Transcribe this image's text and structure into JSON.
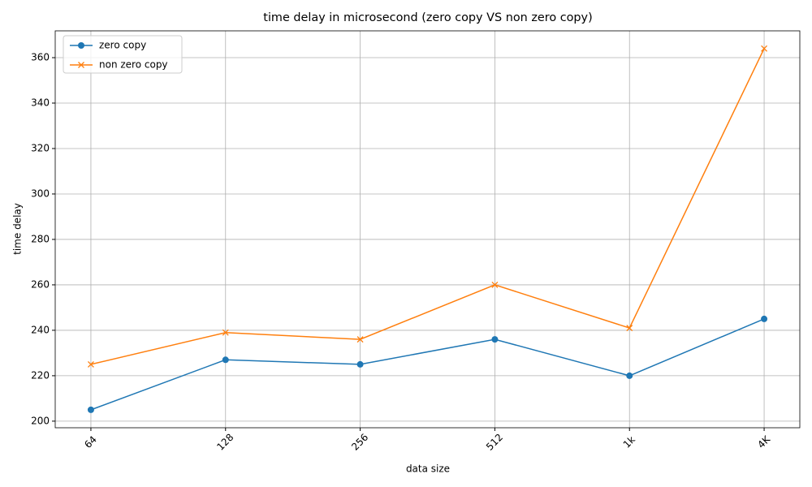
{
  "chart_data": {
    "type": "line",
    "title": "time delay in microsecond (zero copy VS non zero copy)",
    "x_label": "data size",
    "y_label": "time delay",
    "categories": [
      "64",
      "128",
      "256",
      "512",
      "1k",
      "4K"
    ],
    "series": [
      {
        "name": "zero copy",
        "color": "#1f77b4",
        "marker": "o",
        "values": [
          205,
          227,
          225,
          236,
          220,
          245
        ]
      },
      {
        "name": "non zero copy",
        "color": "#ff7f0e",
        "marker": "x",
        "values": [
          225,
          239,
          236,
          260,
          241,
          364
        ]
      }
    ],
    "ylim": [
      197.1,
      371.8
    ],
    "yticks": [
      200,
      220,
      240,
      260,
      280,
      300,
      320,
      340,
      360
    ],
    "grid": true,
    "legend": "upper left"
  }
}
